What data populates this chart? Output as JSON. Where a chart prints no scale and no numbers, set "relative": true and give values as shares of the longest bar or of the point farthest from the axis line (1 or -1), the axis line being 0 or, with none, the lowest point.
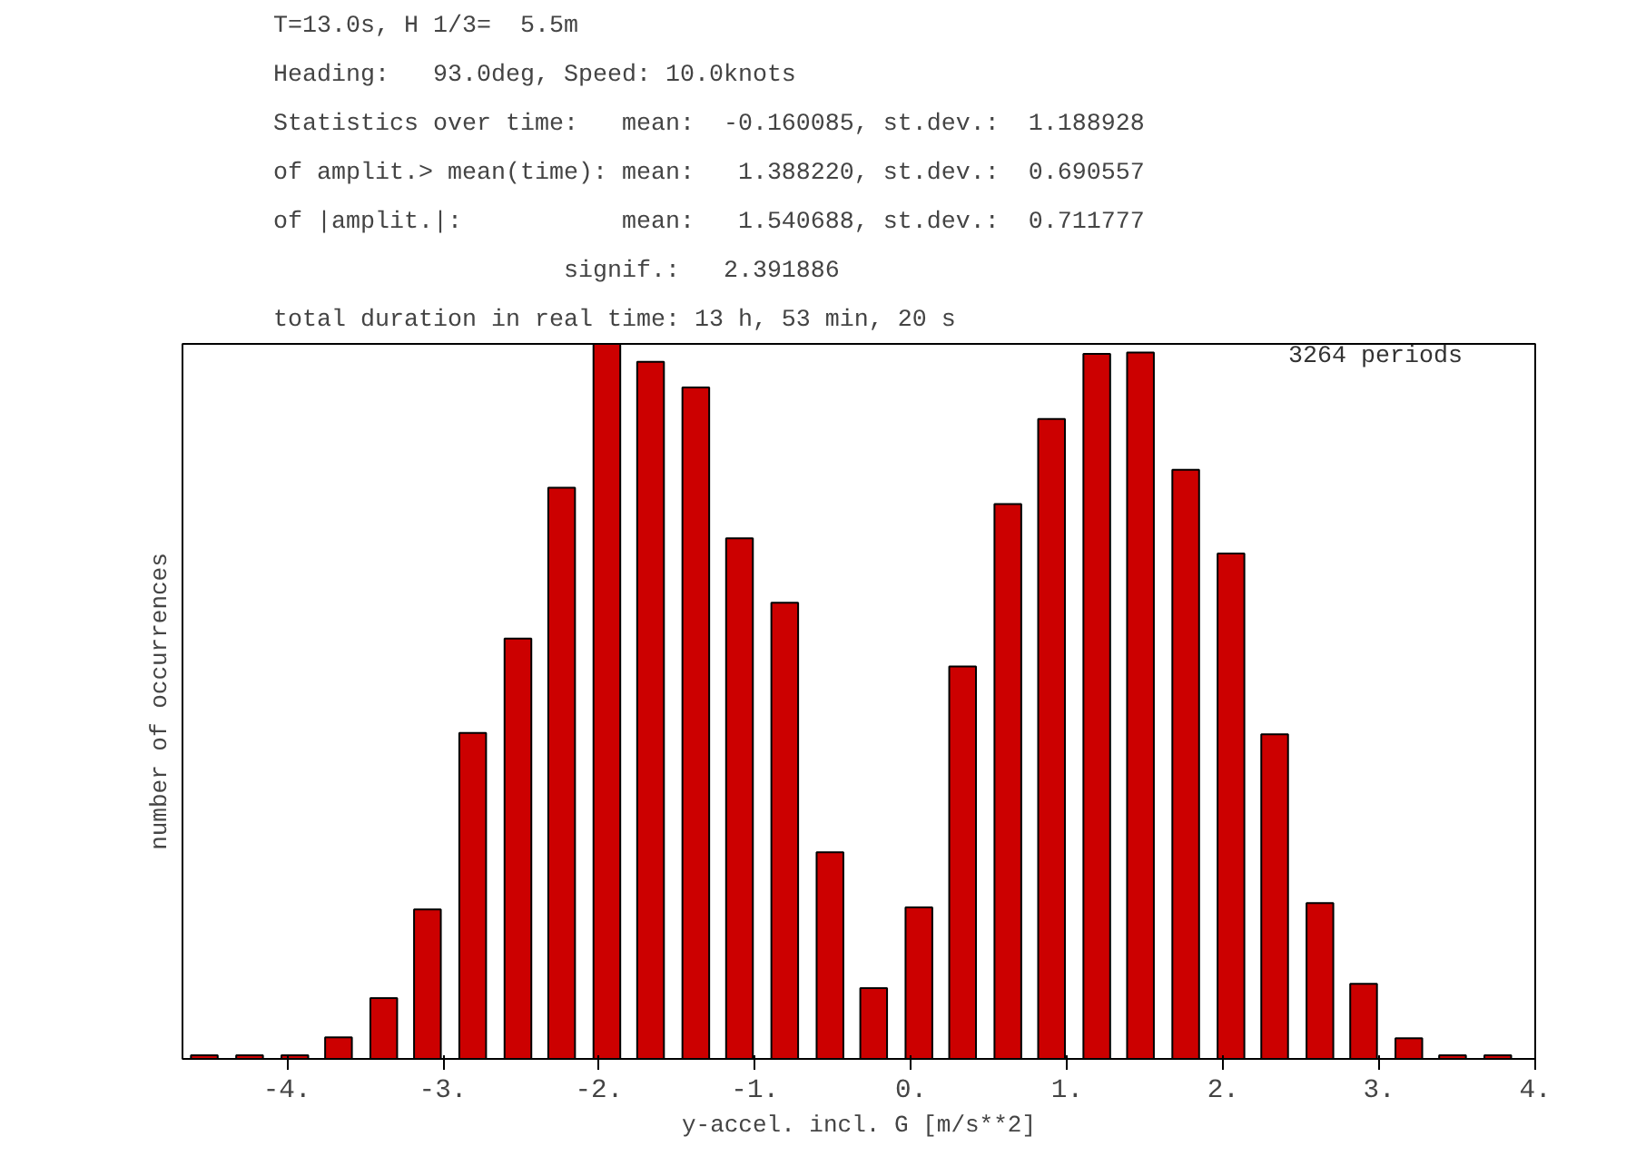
{
  "chart_data": {
    "type": "bar",
    "title": "T=13.0s, H 1/3=  5.5m",
    "subtitle": "Heading:   93.0deg, Speed: 10.0knots",
    "annotations": [
      "Statistics over time:   mean:  -0.160085, st.dev.:  1.188928",
      "of amplit.> mean(time): mean:   1.388220, st.dev.:  0.690557",
      "of |amplit.|:           mean:   1.540688, st.dev.:  0.711777",
      "                    signif.:   2.391886",
      "total duration in real time: 13 h, 53 min, 20 s",
      "3264 periods"
    ],
    "xlabel": "y-accel. incl. G [m/s**2]",
    "ylabel": "number of occurrences",
    "x": [
      -4.53,
      -4.24,
      -3.95,
      -3.67,
      -3.38,
      -3.1,
      -2.81,
      -2.52,
      -2.24,
      -1.95,
      -1.67,
      -1.38,
      -1.1,
      -0.81,
      -0.52,
      -0.24,
      0.05,
      0.33,
      0.62,
      0.9,
      1.19,
      1.47,
      1.76,
      2.05,
      2.33,
      2.62,
      2.9,
      3.19,
      3.47,
      3.76
    ],
    "values": [
      0.005,
      0.005,
      0.005,
      0.03,
      0.085,
      0.209,
      0.456,
      0.588,
      0.799,
      1.0,
      0.975,
      0.939,
      0.728,
      0.638,
      0.289,
      0.099,
      0.212,
      0.549,
      0.776,
      0.895,
      0.986,
      0.988,
      0.824,
      0.707,
      0.454,
      0.218,
      0.105,
      0.029,
      0.005,
      0.005
    ],
    "relative": true,
    "color": "#cc0000",
    "xlim": [
      -4.67,
      4.0
    ],
    "xticks": [
      {
        "value": -4,
        "label": "-4."
      },
      {
        "value": -3,
        "label": "-3."
      },
      {
        "value": -2,
        "label": "-2."
      },
      {
        "value": -1,
        "label": "-1."
      },
      {
        "value": 0,
        "label": "0."
      },
      {
        "value": 1,
        "label": "1."
      },
      {
        "value": 2,
        "label": "2."
      },
      {
        "value": 3,
        "label": "3."
      },
      {
        "value": 4,
        "label": "4."
      }
    ],
    "tick_labels": "x",
    "grid": false
  }
}
